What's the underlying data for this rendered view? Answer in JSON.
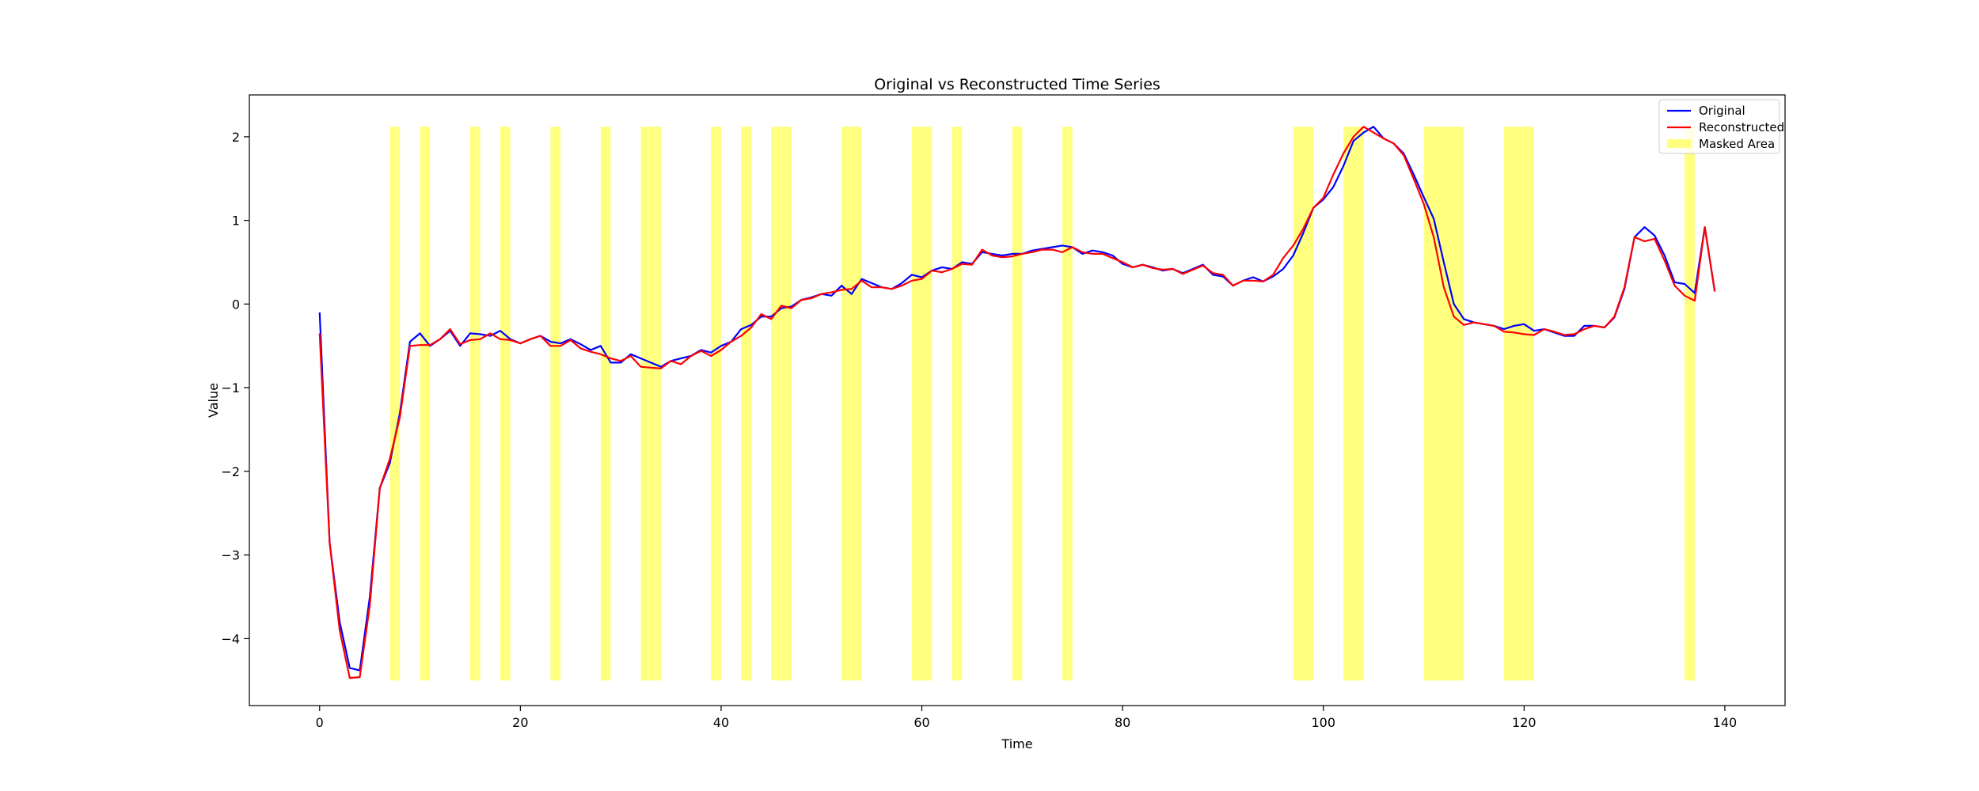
{
  "chart_data": {
    "type": "line",
    "title": "Original vs Reconstructed Time Series",
    "xlabel": "Time",
    "ylabel": "Value",
    "xlim": [
      -7,
      146
    ],
    "ylim": [
      -4.8,
      2.5
    ],
    "xticks": [
      0,
      20,
      40,
      60,
      80,
      100,
      120,
      140
    ],
    "yticks": [
      -4,
      -3,
      -2,
      -1,
      0,
      1,
      2
    ],
    "grid": false,
    "legend_position": "top-right",
    "masked_regions_label": "Masked Area",
    "masked_regions_color": "#ffff80",
    "masked_y_range": [
      -4.5,
      2.12
    ],
    "masked_regions": [
      [
        7,
        8
      ],
      [
        10,
        11
      ],
      [
        15,
        16
      ],
      [
        18,
        19
      ],
      [
        23,
        24
      ],
      [
        28,
        29
      ],
      [
        32,
        34
      ],
      [
        39,
        40
      ],
      [
        42,
        43
      ],
      [
        45,
        47
      ],
      [
        52,
        54
      ],
      [
        59,
        61
      ],
      [
        63,
        64
      ],
      [
        69,
        70
      ],
      [
        74,
        75
      ],
      [
        97,
        99
      ],
      [
        102,
        104
      ],
      [
        110,
        114
      ],
      [
        118,
        121
      ],
      [
        136,
        137
      ]
    ],
    "series": [
      {
        "name": "Original",
        "color": "#0000ff",
        "values": [
          -0.1,
          -2.85,
          -3.8,
          -4.35,
          -4.38,
          -3.5,
          -2.2,
          -1.9,
          -1.3,
          -0.45,
          -0.35,
          -0.5,
          -0.42,
          -0.32,
          -0.5,
          -0.35,
          -0.36,
          -0.38,
          -0.32,
          -0.42,
          -0.47,
          -0.42,
          -0.38,
          -0.45,
          -0.47,
          -0.42,
          -0.48,
          -0.55,
          -0.5,
          -0.7,
          -0.7,
          -0.6,
          -0.65,
          -0.7,
          -0.75,
          -0.68,
          -0.65,
          -0.62,
          -0.55,
          -0.58,
          -0.5,
          -0.45,
          -0.3,
          -0.25,
          -0.15,
          -0.15,
          -0.05,
          -0.03,
          0.05,
          0.08,
          0.12,
          0.1,
          0.22,
          0.12,
          0.3,
          0.25,
          0.2,
          0.18,
          0.25,
          0.35,
          0.32,
          0.4,
          0.44,
          0.42,
          0.5,
          0.48,
          0.62,
          0.6,
          0.58,
          0.6,
          0.6,
          0.64,
          0.66,
          0.68,
          0.7,
          0.68,
          0.6,
          0.64,
          0.62,
          0.58,
          0.48,
          0.44,
          0.47,
          0.44,
          0.4,
          0.42,
          0.37,
          0.42,
          0.47,
          0.35,
          0.33,
          0.22,
          0.28,
          0.32,
          0.27,
          0.33,
          0.42,
          0.58,
          0.85,
          1.15,
          1.25,
          1.4,
          1.65,
          1.95,
          2.05,
          2.12,
          1.98,
          1.92,
          1.8,
          1.55,
          1.28,
          1.02,
          0.5,
          0.0,
          -0.18,
          -0.22,
          -0.24,
          -0.26,
          -0.3,
          -0.26,
          -0.24,
          -0.32,
          -0.3,
          -0.34,
          -0.38,
          -0.38,
          -0.26,
          -0.26,
          -0.28,
          -0.16,
          0.18,
          0.8,
          0.92,
          0.82,
          0.58,
          0.26,
          0.24,
          0.13,
          0.92,
          0.15
        ]
      },
      {
        "name": "Reconstructed",
        "color": "#ff0000",
        "values": [
          -0.35,
          -2.85,
          -3.9,
          -4.47,
          -4.46,
          -3.6,
          -2.2,
          -1.85,
          -1.35,
          -0.5,
          -0.49,
          -0.49,
          -0.42,
          -0.3,
          -0.48,
          -0.43,
          -0.42,
          -0.35,
          -0.42,
          -0.43,
          -0.47,
          -0.42,
          -0.38,
          -0.5,
          -0.5,
          -0.43,
          -0.53,
          -0.57,
          -0.6,
          -0.65,
          -0.68,
          -0.62,
          -0.75,
          -0.76,
          -0.77,
          -0.68,
          -0.72,
          -0.62,
          -0.56,
          -0.62,
          -0.55,
          -0.45,
          -0.38,
          -0.28,
          -0.12,
          -0.18,
          -0.02,
          -0.05,
          0.05,
          0.07,
          0.12,
          0.14,
          0.17,
          0.18,
          0.28,
          0.2,
          0.2,
          0.18,
          0.22,
          0.28,
          0.3,
          0.4,
          0.38,
          0.42,
          0.48,
          0.47,
          0.65,
          0.58,
          0.56,
          0.57,
          0.6,
          0.62,
          0.65,
          0.65,
          0.62,
          0.68,
          0.62,
          0.6,
          0.6,
          0.55,
          0.5,
          0.44,
          0.47,
          0.43,
          0.41,
          0.42,
          0.36,
          0.41,
          0.46,
          0.37,
          0.35,
          0.22,
          0.28,
          0.28,
          0.27,
          0.35,
          0.55,
          0.7,
          0.9,
          1.15,
          1.27,
          1.55,
          1.8,
          2.0,
          2.12,
          2.05,
          1.98,
          1.92,
          1.78,
          1.5,
          1.2,
          0.8,
          0.2,
          -0.15,
          -0.25,
          -0.22,
          -0.24,
          -0.26,
          -0.33,
          -0.34,
          -0.36,
          -0.37,
          -0.3,
          -0.33,
          -0.37,
          -0.36,
          -0.3,
          -0.26,
          -0.28,
          -0.15,
          0.2,
          0.8,
          0.75,
          0.78,
          0.52,
          0.22,
          0.1,
          0.04,
          0.92,
          0.15
        ]
      }
    ]
  }
}
